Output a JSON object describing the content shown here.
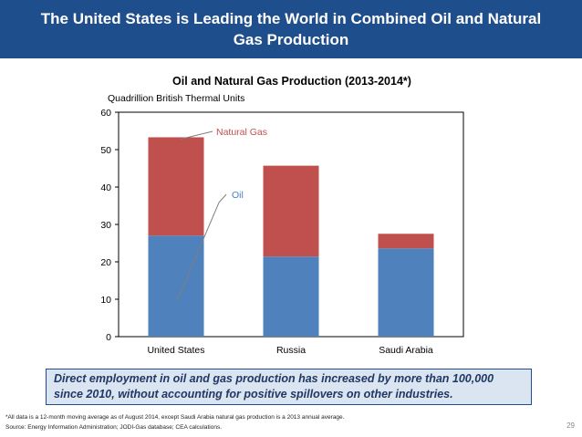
{
  "slide": {
    "title": "The United States is Leading the World in Combined Oil and Natural Gas Production",
    "callout": "Direct employment in oil and gas production has increased by more than 100,000 since 2010, without accounting for positive spillovers on other industries.",
    "footnote_1": "*All data is a 12-month moving average as of August 2014, except Saudi Arabia natural gas production is a 2013 annual average.",
    "footnote_2": "Source: Energy Information Administration; JODI-Gas database; CEA calculations.",
    "page_number": "29"
  },
  "chart_data": {
    "type": "bar",
    "stacked": true,
    "title": "Oil and Natural Gas Production (2013-2014*)",
    "ylabel": "Quadrillion British Thermal Units",
    "xlabel": "",
    "categories": [
      "United States",
      "Russia",
      "Saudi Arabia"
    ],
    "series": [
      {
        "name": "Oil",
        "color": "#4f81bd",
        "values": [
          27.0,
          21.4,
          23.6
        ]
      },
      {
        "name": "Natural Gas",
        "color": "#c0504d",
        "values": [
          26.3,
          24.3,
          3.9
        ]
      }
    ],
    "ylim": [
      0,
      60
    ],
    "yticks": [
      0,
      10,
      20,
      30,
      40,
      50,
      60
    ],
    "grid": false,
    "legend": "inline-labels"
  }
}
